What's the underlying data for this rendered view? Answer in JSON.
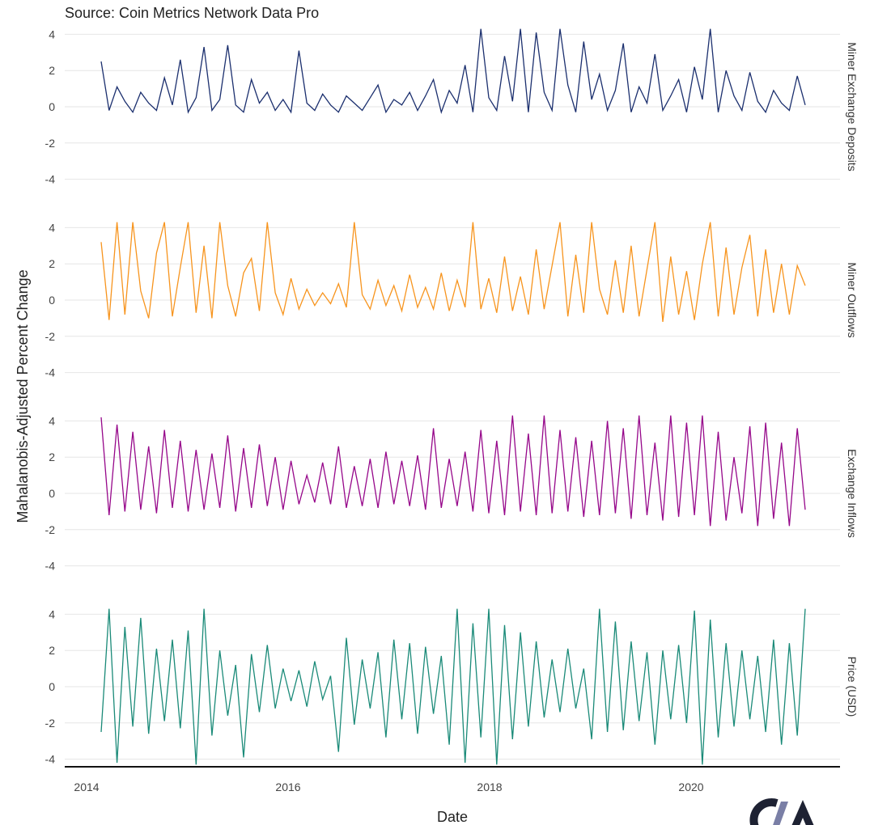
{
  "subtitle": "Source: Coin Metrics Network Data Pro",
  "chart_data": {
    "type": "line",
    "facets": "vertical",
    "xlabel": "Date",
    "ylabel": "Mahalanobis-Adjusted Percent Change",
    "x_ticks": [
      2014,
      2016,
      2018,
      2020
    ],
    "x_range": [
      2013.8,
      2021.5
    ],
    "x_start": "2014-02",
    "x_end": "2021-02",
    "y_ticks": [
      4,
      2,
      0,
      -2,
      -4
    ],
    "ylim": [
      -4.3,
      4.4
    ],
    "grid": true,
    "series": [
      {
        "name": "Miner Exchange Deposits",
        "color": "#1b2f6e",
        "values": [
          2.5,
          -0.2,
          1.1,
          0.3,
          -0.3,
          0.8,
          0.2,
          -0.2,
          1.6,
          0.1,
          2.6,
          -0.3,
          0.5,
          3.3,
          -0.2,
          0.4,
          3.4,
          0.1,
          -0.3,
          1.5,
          0.2,
          0.8,
          -0.2,
          0.4,
          -0.3,
          3.1,
          0.2,
          -0.2,
          0.7,
          0.1,
          -0.3,
          0.6,
          0.2,
          -0.2,
          0.5,
          1.2,
          -0.3,
          0.4,
          0.1,
          0.8,
          -0.2,
          0.6,
          1.5,
          -0.3,
          0.9,
          0.2,
          2.3,
          -0.3,
          4.3,
          0.5,
          -0.2,
          2.8,
          0.3,
          4.3,
          -0.3,
          4.1,
          0.8,
          -0.2,
          4.3,
          1.2,
          -0.3,
          3.6,
          0.4,
          1.8,
          -0.2,
          0.9,
          3.5,
          -0.3,
          1.1,
          0.2,
          2.9,
          -0.2,
          0.6,
          1.5,
          -0.3,
          2.2,
          0.4,
          4.3,
          -0.3,
          2.0,
          0.6,
          -0.2,
          1.9,
          0.3,
          -0.3,
          0.9,
          0.2,
          -0.2,
          1.7,
          0.1
        ]
      },
      {
        "name": "Miner Outflows",
        "color": "#f7941d",
        "values": [
          3.2,
          -1.1,
          4.3,
          -0.8,
          4.3,
          0.5,
          -1.0,
          2.6,
          4.3,
          -0.9,
          1.8,
          4.3,
          -0.7,
          3.0,
          -1.0,
          4.3,
          0.8,
          -0.9,
          1.5,
          2.3,
          -0.6,
          4.3,
          0.4,
          -0.8,
          1.2,
          -0.5,
          0.6,
          -0.3,
          0.4,
          -0.2,
          0.9,
          -0.4,
          4.3,
          0.3,
          -0.5,
          1.1,
          -0.3,
          0.8,
          -0.6,
          1.4,
          -0.4,
          0.7,
          -0.5,
          1.5,
          -0.6,
          1.1,
          -0.4,
          4.3,
          -0.5,
          1.2,
          -0.7,
          2.4,
          -0.6,
          1.3,
          -0.8,
          2.8,
          -0.5,
          1.9,
          4.3,
          -0.9,
          2.5,
          -0.7,
          4.3,
          0.6,
          -0.8,
          2.2,
          -0.7,
          3.0,
          -0.9,
          1.7,
          4.3,
          -1.2,
          2.4,
          -0.8,
          1.6,
          -1.1,
          2.0,
          4.3,
          -0.9,
          2.9,
          -0.8,
          1.8,
          3.6,
          -0.9,
          2.8,
          -0.7,
          2.0,
          -0.8,
          1.9,
          0.8
        ]
      },
      {
        "name": "Exchange Inflows",
        "color": "#96078a",
        "values": [
          4.2,
          -1.2,
          3.8,
          -1.0,
          3.4,
          -0.9,
          2.6,
          -1.1,
          3.5,
          -0.8,
          2.9,
          -1.0,
          2.4,
          -0.9,
          2.2,
          -0.8,
          3.2,
          -1.0,
          2.5,
          -0.8,
          2.7,
          -0.7,
          2.0,
          -0.9,
          1.8,
          -0.6,
          1.0,
          -0.5,
          1.7,
          -0.6,
          2.6,
          -0.8,
          1.5,
          -0.7,
          1.9,
          -0.8,
          2.3,
          -0.6,
          1.8,
          -0.7,
          2.1,
          -0.9,
          3.6,
          -0.8,
          1.9,
          -0.7,
          2.3,
          -1.0,
          3.5,
          -1.1,
          2.9,
          -1.2,
          4.3,
          -1.0,
          3.3,
          -1.2,
          4.3,
          -1.1,
          3.5,
          -1.0,
          3.1,
          -1.3,
          2.9,
          -1.2,
          4.0,
          -1.1,
          3.6,
          -1.4,
          4.3,
          -1.2,
          2.8,
          -1.5,
          4.3,
          -1.3,
          3.9,
          -1.2,
          4.3,
          -1.8,
          3.4,
          -1.5,
          2.0,
          -1.1,
          3.7,
          -1.8,
          3.9,
          -1.4,
          2.8,
          -1.8,
          3.6,
          -0.9
        ]
      },
      {
        "name": "Price (USD)",
        "color": "#1a8a78",
        "values": [
          -2.5,
          4.3,
          -4.2,
          3.3,
          -2.2,
          3.8,
          -2.6,
          2.1,
          -1.9,
          2.6,
          -2.3,
          3.1,
          -4.3,
          4.3,
          -2.7,
          2.0,
          -1.6,
          1.2,
          -3.9,
          1.8,
          -1.4,
          2.3,
          -1.2,
          1.0,
          -0.8,
          0.9,
          -1.1,
          1.4,
          -0.7,
          0.6,
          -3.6,
          2.7,
          -2.1,
          1.5,
          -1.2,
          1.9,
          -2.8,
          2.6,
          -1.8,
          2.4,
          -2.6,
          2.2,
          -1.5,
          1.7,
          -3.2,
          4.3,
          -4.2,
          3.5,
          -2.8,
          4.3,
          -4.3,
          3.4,
          -2.9,
          3.0,
          -2.2,
          2.5,
          -1.7,
          1.5,
          -1.4,
          2.1,
          -1.2,
          1.0,
          -2.9,
          4.3,
          -2.5,
          3.6,
          -2.4,
          2.5,
          -1.9,
          1.9,
          -3.2,
          2.0,
          -1.8,
          2.3,
          -2.0,
          4.2,
          -4.3,
          3.7,
          -2.8,
          2.4,
          -2.2,
          2.0,
          -1.8,
          1.7,
          -2.5,
          2.6,
          -3.2,
          2.4,
          -2.7,
          4.3
        ]
      }
    ]
  }
}
